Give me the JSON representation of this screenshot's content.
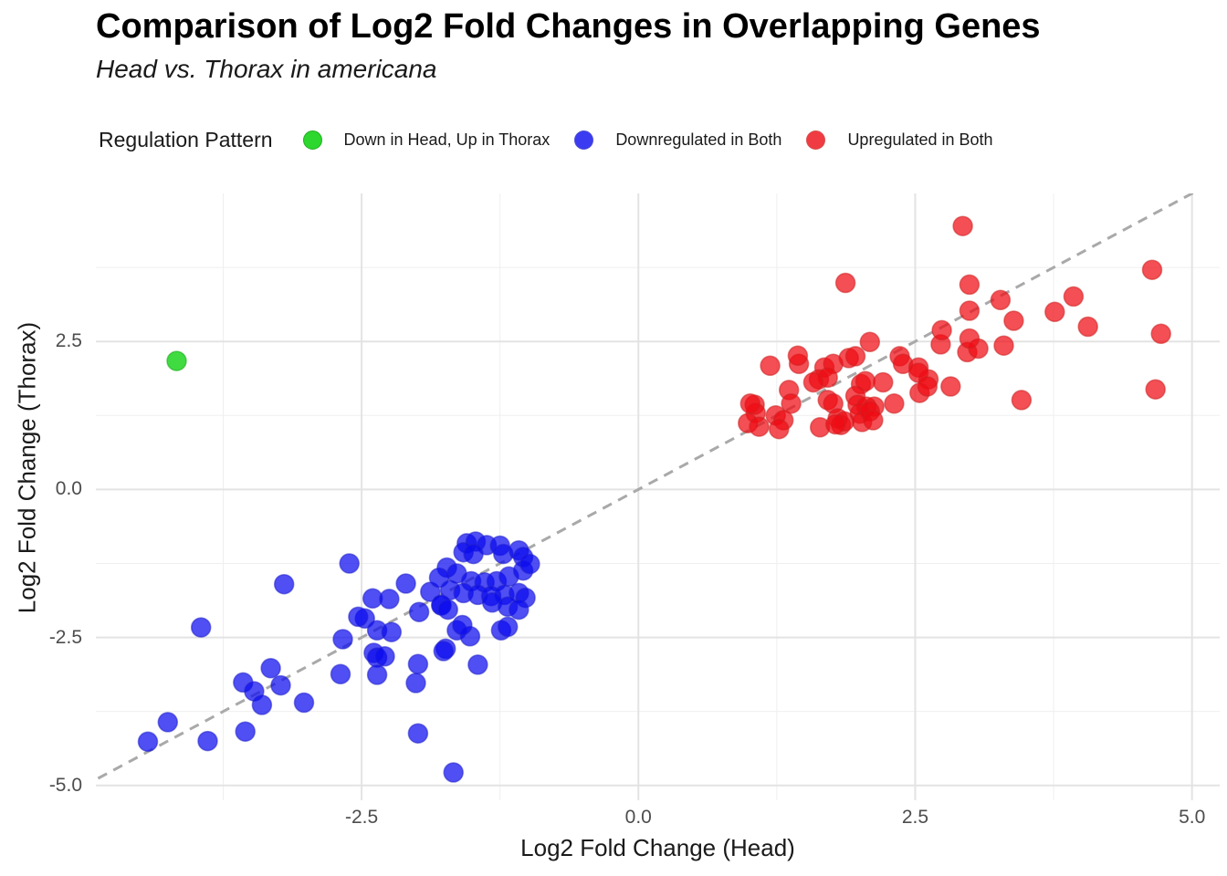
{
  "header": {
    "title": "Comparison of Log2 Fold Changes in Overlapping Genes",
    "subtitle": "Head vs. Thorax in americana"
  },
  "legend": {
    "title": "Regulation Pattern"
  },
  "axes": {
    "x_title": "Log2 Fold Change (Head)",
    "y_title": "Log2 Fold Change (Thorax)"
  },
  "chart_data": {
    "type": "scatter",
    "title": "Comparison of Log2 Fold Changes in Overlapping Genes",
    "subtitle": "Head vs. Thorax in americana",
    "xlabel": "Log2 Fold Change (Head)",
    "ylabel": "Log2 Fold Change (Thorax)",
    "legend_title": "Regulation Pattern",
    "legend_position": "top",
    "grid": {
      "major_color": "#e3e3e3",
      "minor_color": "#efefef",
      "background": "#ffffff"
    },
    "xlim": [
      -4.9,
      5.25
    ],
    "ylim": [
      -5.25,
      5.0
    ],
    "x_ticks": [
      {
        "v": -2.5,
        "label": "-2.5"
      },
      {
        "v": 0.0,
        "label": "0.0"
      },
      {
        "v": 2.5,
        "label": "2.5"
      },
      {
        "v": 5.0,
        "label": "5.0"
      }
    ],
    "y_ticks": [
      {
        "v": 2.5,
        "label": "2.5"
      },
      {
        "v": 0.0,
        "label": "0.0"
      },
      {
        "v": -2.5,
        "label": "-2.5"
      },
      {
        "v": -5.0,
        "label": "-5.0"
      }
    ],
    "x_minor": [
      -3.75,
      -1.25,
      1.25,
      3.75
    ],
    "y_minor": [
      3.75,
      1.25,
      -1.25,
      -3.75
    ],
    "identity_line": {
      "style": "dashed",
      "color": "#a9a9a9",
      "width": 3,
      "dash": "11 8",
      "from": [
        -4.88,
        -4.88
      ],
      "to": [
        5.25,
        5.25
      ]
    },
    "point_radius": 10.5,
    "series": [
      {
        "name": "Down in Head, Up in Thorax",
        "color": "#1ed51e",
        "edge": "#14a814",
        "opacity": 0.85,
        "points": [
          [
            -4.17,
            2.17
          ]
        ]
      },
      {
        "name": "Downregulated in Both",
        "color": "#0b0bee",
        "edge": "#2222cc",
        "opacity": 0.72,
        "points": [
          [
            -3.2,
            -1.6
          ],
          [
            -3.95,
            -2.33
          ],
          [
            -3.32,
            -3.02
          ],
          [
            -3.57,
            -3.26
          ],
          [
            -3.47,
            -3.41
          ],
          [
            -3.23,
            -3.31
          ],
          [
            -3.4,
            -3.64
          ],
          [
            -3.02,
            -3.6
          ],
          [
            -4.25,
            -3.93
          ],
          [
            -4.43,
            -4.26
          ],
          [
            -3.89,
            -4.25
          ],
          [
            -3.55,
            -4.09
          ],
          [
            -2.61,
            -1.25
          ],
          [
            -2.4,
            -1.84
          ],
          [
            -2.1,
            -1.59
          ],
          [
            -2.25,
            -1.85
          ],
          [
            -1.88,
            -1.73
          ],
          [
            -2.47,
            -2.18
          ],
          [
            -2.53,
            -2.15
          ],
          [
            -2.36,
            -2.38
          ],
          [
            -2.23,
            -2.41
          ],
          [
            -2.67,
            -2.53
          ],
          [
            -2.39,
            -2.76
          ],
          [
            -1.98,
            -2.07
          ],
          [
            -1.78,
            -1.96
          ],
          [
            -1.64,
            -2.38
          ],
          [
            -1.52,
            -2.48
          ],
          [
            -1.24,
            -2.38
          ],
          [
            -1.74,
            -2.69
          ],
          [
            -2.69,
            -3.12
          ],
          [
            -2.36,
            -2.84
          ],
          [
            -2.29,
            -2.82
          ],
          [
            -2.36,
            -3.13
          ],
          [
            -1.99,
            -2.95
          ],
          [
            -2.01,
            -3.27
          ],
          [
            -1.76,
            -2.73
          ],
          [
            -1.45,
            -2.96
          ],
          [
            -1.99,
            -4.12
          ],
          [
            -1.67,
            -4.78
          ],
          [
            -1.55,
            -0.91
          ],
          [
            -1.47,
            -0.88
          ],
          [
            -1.37,
            -0.94
          ],
          [
            -1.25,
            -0.95
          ],
          [
            -1.58,
            -1.06
          ],
          [
            -1.49,
            -1.09
          ],
          [
            -1.22,
            -1.09
          ],
          [
            -1.08,
            -1.03
          ],
          [
            -1.04,
            -1.14
          ],
          [
            -1.73,
            -1.32
          ],
          [
            -1.64,
            -1.42
          ],
          [
            -1.8,
            -1.49
          ],
          [
            -1.51,
            -1.55
          ],
          [
            -1.39,
            -1.57
          ],
          [
            -1.28,
            -1.55
          ],
          [
            -1.17,
            -1.47
          ],
          [
            -1.04,
            -1.37
          ],
          [
            -0.98,
            -1.26
          ],
          [
            -1.7,
            -1.7
          ],
          [
            -1.58,
            -1.75
          ],
          [
            -1.45,
            -1.78
          ],
          [
            -1.33,
            -1.8
          ],
          [
            -1.21,
            -1.78
          ],
          [
            -1.08,
            -1.75
          ],
          [
            -1.02,
            -1.83
          ],
          [
            -1.32,
            -1.91
          ],
          [
            -1.18,
            -1.98
          ],
          [
            -1.08,
            -2.03
          ],
          [
            -1.78,
            -1.95
          ],
          [
            -1.72,
            -2.03
          ],
          [
            -1.59,
            -2.29
          ],
          [
            -1.18,
            -2.32
          ]
        ]
      },
      {
        "name": "Upregulated in Both",
        "color": "#ee0b14",
        "edge": "#cc2222",
        "opacity": 0.72,
        "points": [
          [
            1.19,
            2.09
          ],
          [
            1.45,
            2.12
          ],
          [
            1.44,
            2.26
          ],
          [
            1.68,
            2.06
          ],
          [
            1.76,
            2.12
          ],
          [
            1.9,
            2.22
          ],
          [
            1.96,
            2.25
          ],
          [
            2.09,
            2.49
          ],
          [
            2.36,
            2.25
          ],
          [
            2.39,
            2.12
          ],
          [
            2.53,
            2.06
          ],
          [
            2.73,
            2.45
          ],
          [
            2.97,
            2.32
          ],
          [
            3.07,
            2.38
          ],
          [
            1.63,
            1.86
          ],
          [
            1.71,
            1.89
          ],
          [
            1.58,
            1.81
          ],
          [
            2.01,
            1.78
          ],
          [
            2.05,
            1.83
          ],
          [
            2.21,
            1.81
          ],
          [
            2.62,
            1.86
          ],
          [
            2.53,
            1.97
          ],
          [
            2.54,
            1.63
          ],
          [
            2.61,
            1.74
          ],
          [
            2.82,
            1.74
          ],
          [
            1.36,
            1.68
          ],
          [
            1.38,
            1.45
          ],
          [
            1.71,
            1.51
          ],
          [
            1.76,
            1.45
          ],
          [
            1.96,
            1.58
          ],
          [
            1.98,
            1.43
          ],
          [
            2.06,
            1.4
          ],
          [
            2.13,
            1.4
          ],
          [
            2.31,
            1.45
          ],
          [
            1.05,
            1.43
          ],
          [
            1.06,
            1.29
          ],
          [
            1.01,
            1.45
          ],
          [
            1.24,
            1.25
          ],
          [
            1.31,
            1.17
          ],
          [
            0.99,
            1.12
          ],
          [
            1.09,
            1.06
          ],
          [
            1.27,
            1.02
          ],
          [
            1.64,
            1.05
          ],
          [
            1.8,
            1.2
          ],
          [
            1.83,
            1.09
          ],
          [
            1.86,
            1.15
          ],
          [
            1.78,
            1.1
          ],
          [
            2.0,
            1.28
          ],
          [
            2.02,
            1.14
          ],
          [
            2.09,
            1.32
          ],
          [
            2.12,
            1.17
          ],
          [
            2.93,
            4.45
          ],
          [
            1.87,
            3.49
          ],
          [
            2.99,
            3.46
          ],
          [
            2.99,
            3.02
          ],
          [
            2.74,
            2.69
          ],
          [
            2.99,
            2.55
          ],
          [
            3.27,
            3.2
          ],
          [
            3.39,
            2.85
          ],
          [
            3.76,
            3.0
          ],
          [
            3.93,
            3.26
          ],
          [
            4.06,
            2.75
          ],
          [
            4.64,
            3.71
          ],
          [
            4.72,
            2.63
          ],
          [
            3.3,
            2.43
          ],
          [
            3.46,
            1.51
          ],
          [
            4.67,
            1.69
          ]
        ]
      }
    ]
  }
}
